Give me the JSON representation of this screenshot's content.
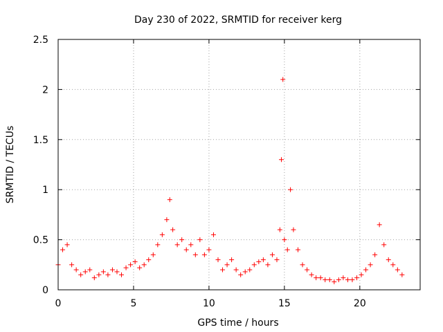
{
  "chart_data": {
    "type": "scatter",
    "title": "Day 230 of 2022, SRMTID for receiver kerg",
    "xlabel": "GPS time / hours",
    "ylabel": "SRMTID / TECUs",
    "xlim": [
      0,
      24
    ],
    "ylim": [
      0,
      2.5
    ],
    "xticks": [
      0,
      5,
      10,
      15,
      20
    ],
    "xtick_labels": [
      "0",
      "5",
      "10",
      "15",
      "20"
    ],
    "yticks": [
      0,
      0.5,
      1,
      1.5,
      2,
      2.5
    ],
    "ytick_labels": [
      "0",
      "0.5",
      "1",
      "1.5",
      "2",
      "2.5"
    ],
    "grid": true,
    "marker": "+",
    "color": "#ff0000",
    "series": [
      {
        "name": "SRMTID",
        "x": [
          0.0,
          0.3,
          0.6,
          0.9,
          1.2,
          1.5,
          1.8,
          2.1,
          2.4,
          2.7,
          3.0,
          3.3,
          3.6,
          3.9,
          4.2,
          4.5,
          4.8,
          5.1,
          5.4,
          5.7,
          6.0,
          6.3,
          6.6,
          6.9,
          7.2,
          7.4,
          7.6,
          7.9,
          8.2,
          8.5,
          8.8,
          9.1,
          9.4,
          9.7,
          10.0,
          10.3,
          10.6,
          10.9,
          11.2,
          11.5,
          11.8,
          12.1,
          12.4,
          12.7,
          13.0,
          13.3,
          13.6,
          13.9,
          14.2,
          14.5,
          14.7,
          14.8,
          14.9,
          15.0,
          15.2,
          15.4,
          15.6,
          15.9,
          16.2,
          16.5,
          16.8,
          17.1,
          17.4,
          17.7,
          18.0,
          18.3,
          18.6,
          18.9,
          19.2,
          19.5,
          19.8,
          20.1,
          20.4,
          20.7,
          21.0,
          21.3,
          21.6,
          21.9,
          22.2,
          22.5,
          22.8
        ],
        "y": [
          0.25,
          0.4,
          0.45,
          0.25,
          0.2,
          0.15,
          0.18,
          0.2,
          0.12,
          0.15,
          0.18,
          0.15,
          0.2,
          0.18,
          0.15,
          0.22,
          0.25,
          0.28,
          0.22,
          0.25,
          0.3,
          0.35,
          0.45,
          0.55,
          0.7,
          0.9,
          0.6,
          0.45,
          0.5,
          0.4,
          0.45,
          0.35,
          0.5,
          0.35,
          0.4,
          0.55,
          0.3,
          0.2,
          0.25,
          0.3,
          0.2,
          0.15,
          0.18,
          0.2,
          0.25,
          0.28,
          0.3,
          0.25,
          0.35,
          0.3,
          0.6,
          1.3,
          2.1,
          0.5,
          0.4,
          1.0,
          0.6,
          0.4,
          0.25,
          0.2,
          0.15,
          0.12,
          0.12,
          0.1,
          0.1,
          0.08,
          0.1,
          0.12,
          0.1,
          0.1,
          0.12,
          0.15,
          0.2,
          0.25,
          0.35,
          0.65,
          0.45,
          0.3,
          0.25,
          0.2,
          0.15
        ]
      }
    ]
  }
}
